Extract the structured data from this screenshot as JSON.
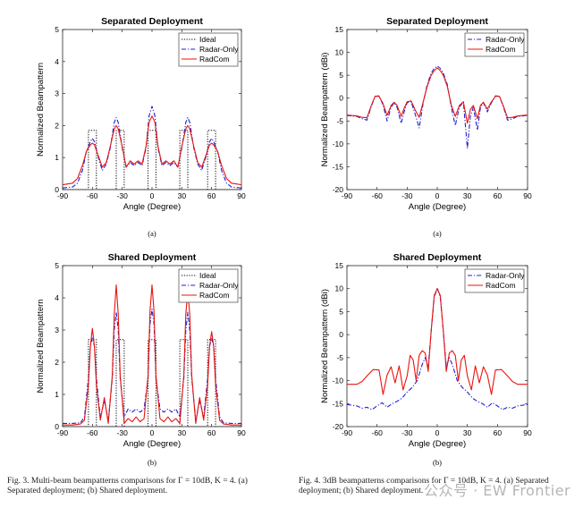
{
  "figure3": {
    "caption": "Fig. 3.    Multi-beam beampatterns comparisons for Γ = 10dB, K = 4. (a) Separated deployment; (b) Shared deployment."
  },
  "figure4": {
    "caption": "Fig. 4.    3dB beampatterns comparisons for Γ = 10dB, K = 4. (a) Separated deployment; (b) Shared deployment."
  },
  "watermark": "公众号 · EW Frontier",
  "colors": {
    "ideal": "#000000",
    "radar": "#1f1fd6",
    "radcom": "#e8140f"
  },
  "chart_data": [
    {
      "id": "f3a",
      "type": "line",
      "sublabel": "(a)",
      "title": "Separated Deployment",
      "xlabel": "Angle (Degree)",
      "ylabel": "Normalized Beampattern",
      "xlim": [
        -90,
        90
      ],
      "ylim": [
        0,
        5
      ],
      "xticks": [
        -90,
        -60,
        -30,
        0,
        30,
        60,
        90
      ],
      "yticks": [
        0,
        1,
        2,
        3,
        4,
        5
      ],
      "legend": [
        "Ideal",
        "Radar-Only",
        "RadCom"
      ],
      "series": [
        {
          "name": "Ideal",
          "style": "dotted",
          "color": "#000000",
          "x": [
            -90,
            -64,
            -64,
            -56,
            -56,
            -36,
            -36,
            -28,
            -28,
            -4,
            -4,
            4,
            4,
            28,
            28,
            36,
            36,
            56,
            56,
            64,
            64,
            90
          ],
          "y": [
            0,
            0,
            1.85,
            1.85,
            0,
            0,
            1.85,
            1.85,
            0,
            0,
            1.85,
            1.85,
            0,
            0,
            1.85,
            1.85,
            0,
            0,
            1.85,
            1.85,
            0,
            0
          ]
        },
        {
          "name": "Radar-Only",
          "style": "dashdot",
          "color": "#1f1fd6",
          "x": [
            -90,
            -80,
            -75,
            -70,
            -66,
            -62,
            -60,
            -58,
            -54,
            -50,
            -46,
            -42,
            -38,
            -36,
            -34,
            -30,
            -26,
            -22,
            -18,
            -14,
            -10,
            -6,
            -3,
            0,
            3,
            6,
            10,
            14,
            18,
            22,
            26,
            30,
            34,
            36,
            38,
            42,
            46,
            50,
            54,
            58,
            60,
            62,
            66,
            70,
            75,
            80,
            90
          ],
          "y": [
            0.05,
            0.08,
            0.2,
            0.6,
            1.2,
            1.5,
            1.6,
            1.5,
            1.0,
            0.6,
            0.8,
            1.3,
            2.1,
            2.25,
            2.1,
            1.3,
            0.7,
            0.85,
            0.75,
            0.85,
            0.75,
            1.3,
            2.3,
            2.6,
            2.3,
            1.3,
            0.75,
            0.85,
            0.75,
            0.85,
            0.7,
            1.3,
            2.1,
            2.25,
            2.1,
            1.3,
            0.8,
            0.6,
            1.0,
            1.5,
            1.6,
            1.5,
            1.2,
            0.6,
            0.2,
            0.08,
            0.05
          ]
        },
        {
          "name": "RadCom",
          "style": "solid",
          "color": "#e8140f",
          "x": [
            -90,
            -80,
            -75,
            -70,
            -66,
            -62,
            -60,
            -58,
            -54,
            -50,
            -46,
            -42,
            -38,
            -36,
            -34,
            -30,
            -26,
            -22,
            -18,
            -14,
            -10,
            -6,
            -3,
            0,
            3,
            6,
            10,
            14,
            18,
            22,
            26,
            30,
            34,
            36,
            38,
            42,
            46,
            50,
            54,
            58,
            60,
            62,
            66,
            70,
            75,
            80,
            90
          ],
          "y": [
            0.15,
            0.2,
            0.35,
            0.75,
            1.2,
            1.4,
            1.45,
            1.4,
            1.05,
            0.7,
            0.85,
            1.35,
            1.9,
            2.0,
            1.9,
            1.35,
            0.7,
            0.9,
            0.8,
            0.9,
            0.8,
            1.35,
            2.1,
            2.3,
            2.1,
            1.35,
            0.8,
            0.9,
            0.8,
            0.9,
            0.7,
            1.35,
            1.9,
            2.0,
            1.9,
            1.35,
            0.85,
            0.7,
            1.05,
            1.4,
            1.45,
            1.4,
            1.2,
            0.75,
            0.35,
            0.2,
            0.15
          ]
        }
      ]
    },
    {
      "id": "f4a",
      "type": "line",
      "sublabel": "(a)",
      "title": "Separated Deployment",
      "xlabel": "Angle (Degree)",
      "ylabel": "Normalized Beampattern (dBi)",
      "xlim": [
        -90,
        90
      ],
      "ylim": [
        -20,
        15
      ],
      "xticks": [
        -90,
        -60,
        -30,
        0,
        30,
        60,
        90
      ],
      "yticks": [
        -20,
        -15,
        -10,
        -5,
        0,
        5,
        10,
        15
      ],
      "legend": [
        "Radar-Only",
        "RadCom"
      ],
      "series": [
        {
          "name": "Radar-Only",
          "style": "dashdot",
          "color": "#1f1fd6",
          "x": [
            -90,
            -80,
            -75,
            -70,
            -66,
            -62,
            -58,
            -54,
            -50,
            -46,
            -43,
            -40,
            -36,
            -33,
            -30,
            -26,
            -22,
            -18,
            -14,
            -10,
            -6,
            -3,
            0,
            3,
            6,
            10,
            14,
            18,
            22,
            26,
            30,
            33,
            36,
            40,
            43,
            46,
            50,
            54,
            58,
            62,
            66,
            70,
            75,
            80,
            90
          ],
          "y": [
            -3.8,
            -4,
            -4.5,
            -4.8,
            -2,
            0.4,
            0.5,
            -1.5,
            -5,
            -2,
            -1,
            -2,
            -5.5,
            -3,
            -1,
            -0.8,
            -3.5,
            -6.5,
            -1,
            3,
            5.5,
            6.5,
            7,
            6.5,
            5.5,
            3,
            -2,
            -6,
            -2,
            -0.8,
            -11,
            -4,
            -2,
            -7,
            -2,
            -1,
            -3,
            -1,
            0.5,
            0.4,
            -2,
            -4.8,
            -4.5,
            -4,
            -3.8
          ]
        },
        {
          "name": "RadCom",
          "style": "solid",
          "color": "#e8140f",
          "x": [
            -90,
            -80,
            -75,
            -70,
            -66,
            -62,
            -58,
            -54,
            -50,
            -46,
            -43,
            -40,
            -36,
            -33,
            -30,
            -26,
            -22,
            -18,
            -14,
            -10,
            -6,
            -3,
            0,
            3,
            6,
            10,
            14,
            18,
            22,
            26,
            30,
            33,
            36,
            40,
            43,
            46,
            50,
            54,
            58,
            62,
            66,
            70,
            75,
            80,
            90
          ],
          "y": [
            -3.7,
            -3.9,
            -4.2,
            -4.3,
            -1.8,
            0.4,
            0.4,
            -1.2,
            -3.8,
            -1.6,
            -0.9,
            -1.6,
            -4,
            -2.2,
            -0.8,
            -0.6,
            -2.6,
            -4.2,
            -0.8,
            2.6,
            5,
            6,
            6.6,
            6,
            5,
            2.6,
            -1.5,
            -4,
            -1.6,
            -0.8,
            -5.5,
            -2.5,
            -1.6,
            -4.5,
            -1.6,
            -0.9,
            -2.4,
            -0.8,
            0.4,
            0.4,
            -1.8,
            -4.3,
            -4.2,
            -3.9,
            -3.7
          ]
        }
      ]
    },
    {
      "id": "f3b",
      "type": "line",
      "sublabel": "(b)",
      "title": "Shared Deployment",
      "xlabel": "Angle (Degree)",
      "ylabel": "Normalized Beampattern",
      "xlim": [
        -90,
        90
      ],
      "ylim": [
        0,
        5
      ],
      "xticks": [
        -90,
        -60,
        -30,
        0,
        30,
        60,
        90
      ],
      "yticks": [
        0,
        1,
        2,
        3,
        4,
        5
      ],
      "legend": [
        "Ideal",
        "Radar-Only",
        "RadCom"
      ],
      "series": [
        {
          "name": "Ideal",
          "style": "dotted",
          "color": "#000000",
          "x": [
            -90,
            -64,
            -64,
            -56,
            -56,
            -36,
            -36,
            -28,
            -28,
            -4,
            -4,
            4,
            4,
            28,
            28,
            36,
            36,
            56,
            56,
            64,
            64,
            90
          ],
          "y": [
            0,
            0,
            2.7,
            2.7,
            0,
            0,
            2.7,
            2.7,
            0,
            0,
            2.7,
            2.7,
            0,
            0,
            2.7,
            2.7,
            0,
            0,
            2.7,
            2.7,
            0,
            0
          ]
        },
        {
          "name": "Radar-Only",
          "style": "dashdot",
          "color": "#1f1fd6",
          "x": [
            -90,
            -80,
            -72,
            -68,
            -64,
            -62,
            -60,
            -58,
            -56,
            -52,
            -48,
            -44,
            -40,
            -38,
            -36,
            -34,
            -32,
            -28,
            -24,
            -20,
            -16,
            -12,
            -8,
            -4,
            -2,
            0,
            2,
            4,
            8,
            12,
            16,
            20,
            24,
            28,
            32,
            34,
            36,
            38,
            40,
            44,
            48,
            52,
            56,
            58,
            60,
            62,
            64,
            68,
            72,
            80,
            90
          ],
          "y": [
            0.1,
            0.1,
            0.12,
            0.3,
            1.5,
            2.5,
            2.75,
            2.5,
            1.5,
            0.3,
            0.8,
            0.2,
            1.5,
            3.0,
            3.55,
            3.0,
            1.5,
            0.3,
            0.55,
            0.45,
            0.55,
            0.45,
            0.55,
            1.5,
            3.2,
            3.65,
            3.2,
            1.5,
            0.55,
            0.45,
            0.55,
            0.45,
            0.55,
            0.3,
            1.5,
            3.0,
            3.55,
            3.0,
            1.5,
            0.2,
            0.8,
            0.3,
            1.5,
            2.5,
            2.75,
            2.5,
            1.5,
            0.3,
            0.12,
            0.1,
            0.1
          ]
        },
        {
          "name": "RadCom",
          "style": "solid",
          "color": "#e8140f",
          "x": [
            -90,
            -80,
            -72,
            -68,
            -64,
            -62,
            -60,
            -58,
            -56,
            -52,
            -48,
            -44,
            -40,
            -38,
            -36,
            -34,
            -32,
            -28,
            -24,
            -20,
            -16,
            -12,
            -8,
            -4,
            -2,
            0,
            2,
            4,
            8,
            12,
            16,
            20,
            24,
            28,
            32,
            34,
            36,
            38,
            40,
            44,
            48,
            52,
            56,
            58,
            60,
            62,
            64,
            68,
            72,
            80,
            90
          ],
          "y": [
            0.05,
            0.05,
            0.08,
            0.2,
            1.3,
            2.5,
            3.05,
            2.5,
            1.3,
            0.2,
            0.9,
            0.1,
            1.6,
            3.5,
            4.4,
            3.5,
            1.6,
            0.1,
            0.25,
            0.15,
            0.3,
            0.15,
            0.25,
            1.6,
            3.6,
            4.4,
            3.6,
            1.6,
            0.25,
            0.15,
            0.3,
            0.15,
            0.25,
            0.1,
            1.6,
            3.5,
            4.2,
            3.5,
            1.6,
            0.1,
            0.9,
            0.2,
            1.3,
            2.5,
            2.95,
            2.5,
            1.3,
            0.2,
            0.08,
            0.05,
            0.05
          ]
        }
      ]
    },
    {
      "id": "f4b",
      "type": "line",
      "sublabel": "(b)",
      "title": "Shared Deployment",
      "xlabel": "Angle (Degree)",
      "ylabel": "Normalized Beampattern (dBi)",
      "xlim": [
        -90,
        90
      ],
      "ylim": [
        -20,
        15
      ],
      "xticks": [
        -90,
        -60,
        -30,
        0,
        30,
        60,
        90
      ],
      "yticks": [
        -20,
        -15,
        -10,
        -5,
        0,
        5,
        10,
        15
      ],
      "legend": [
        "Radar-Only",
        "RadCom"
      ],
      "series": [
        {
          "name": "Radar-Only",
          "style": "dashdot",
          "color": "#1f1fd6",
          "x": [
            -90,
            -80,
            -75,
            -70,
            -65,
            -60,
            -55,
            -50,
            -45,
            -40,
            -35,
            -30,
            -25,
            -20,
            -15,
            -12,
            -9,
            -6,
            -3,
            0,
            3,
            6,
            9,
            12,
            15,
            20,
            25,
            30,
            35,
            40,
            45,
            50,
            55,
            60,
            65,
            70,
            75,
            80,
            90
          ],
          "y": [
            -15.2,
            -15.5,
            -16,
            -15.8,
            -16.3,
            -15.5,
            -14.8,
            -15.8,
            -15,
            -14.5,
            -13.8,
            -12.5,
            -11.5,
            -10,
            -6.5,
            -5,
            -7,
            1,
            8,
            10.2,
            8,
            1,
            -7,
            -5,
            -6.5,
            -10,
            -11.5,
            -12.5,
            -13.8,
            -14.5,
            -15,
            -15.8,
            -14.8,
            -15.5,
            -16.3,
            -15.8,
            -16,
            -15.5,
            -15.2
          ]
        },
        {
          "name": "RadCom",
          "style": "solid",
          "color": "#e8140f",
          "x": [
            -90,
            -80,
            -75,
            -70,
            -64,
            -58,
            -54,
            -50,
            -46,
            -42,
            -38,
            -34,
            -30,
            -27,
            -24,
            -21,
            -18,
            -15,
            -12,
            -9,
            -6,
            -3,
            0,
            3,
            6,
            9,
            12,
            15,
            18,
            21,
            24,
            27,
            30,
            34,
            38,
            42,
            46,
            50,
            54,
            58,
            64,
            70,
            75,
            80,
            90
          ],
          "y": [
            -10.8,
            -10.8,
            -10.2,
            -9,
            -7.6,
            -7.7,
            -13,
            -8.8,
            -7,
            -10.5,
            -6.8,
            -12,
            -9,
            -4.5,
            -5.5,
            -10,
            -4.5,
            -3.5,
            -4,
            -8,
            1,
            8.5,
            10,
            8.5,
            1,
            -8,
            -4,
            -3.5,
            -4.5,
            -10,
            -5.5,
            -4.5,
            -9,
            -12,
            -6.8,
            -10.5,
            -7,
            -8.8,
            -13,
            -7.7,
            -7.6,
            -9,
            -10.2,
            -10.8,
            -10.8
          ]
        }
      ]
    }
  ]
}
